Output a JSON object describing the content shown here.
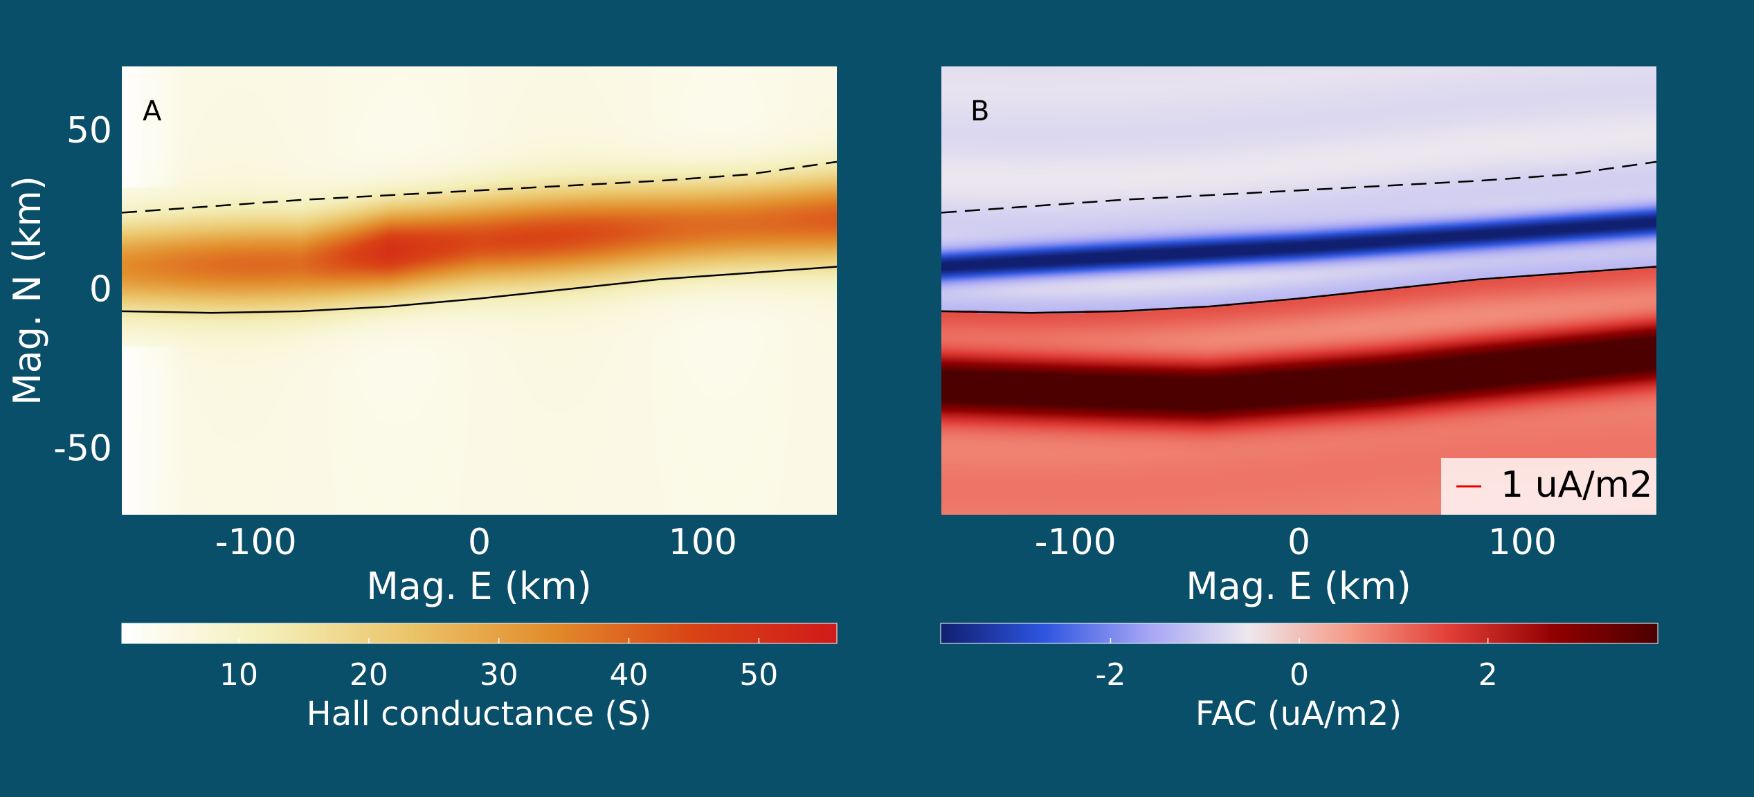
{
  "colors": {
    "background": "#0a4f69",
    "axis_text": "#ffffff",
    "boundary_line": "#000000",
    "legend_line": "#e60000",
    "hall_cmap": [
      "#ffffff",
      "#f4efba",
      "#ebc56a",
      "#e28c2b",
      "#d94315",
      "#d01a1a"
    ],
    "fac_cmap": [
      "#101f70",
      "#2d55e0",
      "#a3a3f5",
      "#ede8ee",
      "#f59a86",
      "#e03b35",
      "#900000",
      "#4c0000"
    ]
  },
  "chart_data": [
    {
      "type": "heatmap",
      "panel_label": "A",
      "xlabel": "Mag. E (km)",
      "ylabel": "Mag. N (km)",
      "xlim": [
        -160,
        160
      ],
      "ylim": [
        -71,
        70
      ],
      "xticks": [
        -100,
        0,
        100
      ],
      "yticks": [
        50,
        0,
        -50
      ],
      "colorbar": {
        "label": "Hall conductance (S)",
        "range": [
          1,
          56
        ],
        "ticks": [
          10,
          20,
          30,
          40,
          50
        ],
        "colormap": "yellow-orange-red"
      },
      "field": {
        "quantity": "Hall conductance (S)",
        "band_center_north_km_at_east": [
          [
            -160,
            7
          ],
          [
            -80,
            8
          ],
          [
            -40,
            12
          ],
          [
            0,
            15
          ],
          [
            80,
            19
          ],
          [
            160,
            22
          ]
        ],
        "band_peak_S_at_east": [
          [
            -160,
            35
          ],
          [
            -80,
            38
          ],
          [
            -40,
            52
          ],
          [
            0,
            44
          ],
          [
            80,
            41
          ],
          [
            160,
            40
          ]
        ],
        "band_halfwidth_km": 14,
        "background_S": 5,
        "low_west_edge_east_km": -130
      },
      "lines": [
        {
          "name": "solid",
          "style": "solid",
          "points": [
            [
              -160,
              -7
            ],
            [
              -120,
              -7.5
            ],
            [
              -80,
              -7
            ],
            [
              -40,
              -5.5
            ],
            [
              0,
              -3
            ],
            [
              40,
              0
            ],
            [
              80,
              3
            ],
            [
              120,
              5
            ],
            [
              160,
              7
            ]
          ]
        },
        {
          "name": "dashed",
          "style": "dashed",
          "points": [
            [
              -160,
              24
            ],
            [
              -80,
              28
            ],
            [
              0,
              31
            ],
            [
              80,
              34
            ],
            [
              120,
              36
            ],
            [
              160,
              40
            ]
          ]
        }
      ]
    },
    {
      "type": "heatmap",
      "panel_label": "B",
      "xlabel": "Mag. E (km)",
      "xlim": [
        -160,
        160
      ],
      "ylim": [
        -71,
        70
      ],
      "xticks": [
        -100,
        0,
        100
      ],
      "colorbar": {
        "label": "FAC (uA/m2)",
        "range": [
          -3.8,
          3.8
        ],
        "ticks": [
          -2,
          0,
          2
        ],
        "colormap": "blue-white-red"
      },
      "field": {
        "quantity": "FAC (uA/m2)",
        "negative_band_center_km_at_east": [
          [
            -160,
            7
          ],
          [
            0,
            13
          ],
          [
            160,
            21
          ]
        ],
        "negative_band_peak": -3.6,
        "positive_band_center_km_at_east": [
          [
            -160,
            -30
          ],
          [
            -40,
            -33
          ],
          [
            40,
            -29
          ],
          [
            160,
            -20
          ]
        ],
        "positive_band_peak": 3.7,
        "upper_background": -0.7,
        "lower_background": 0.9
      },
      "lines": [
        {
          "name": "solid",
          "style": "solid",
          "points": [
            [
              -160,
              -7
            ],
            [
              -120,
              -7.5
            ],
            [
              -80,
              -7
            ],
            [
              -40,
              -5.5
            ],
            [
              0,
              -3
            ],
            [
              40,
              0
            ],
            [
              80,
              3
            ],
            [
              120,
              5
            ],
            [
              160,
              7
            ]
          ]
        },
        {
          "name": "dashed",
          "style": "dashed",
          "points": [
            [
              -160,
              24
            ],
            [
              -80,
              28
            ],
            [
              0,
              31
            ],
            [
              80,
              34
            ],
            [
              120,
              36
            ],
            [
              160,
              40
            ]
          ]
        }
      ],
      "legend": {
        "label": "1 uA/m2",
        "position": "bottom-right"
      }
    }
  ]
}
